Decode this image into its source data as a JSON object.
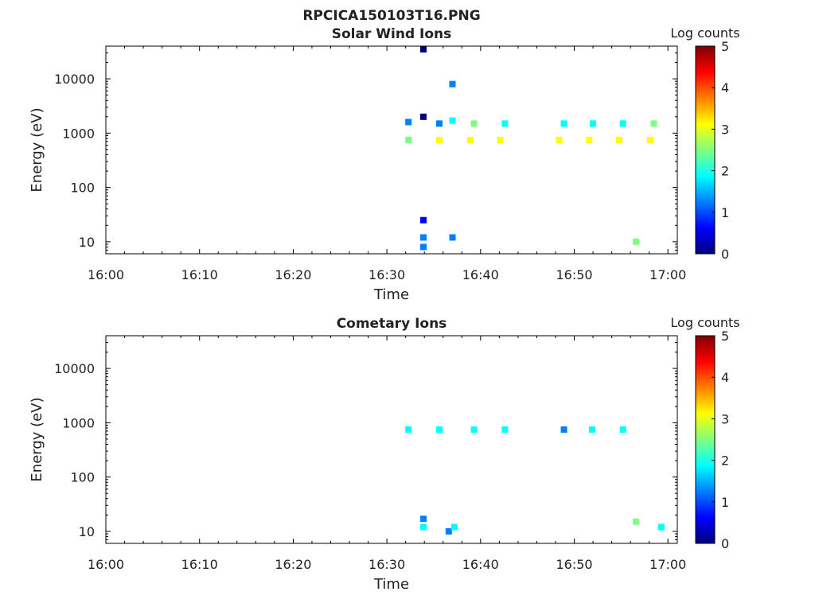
{
  "figure": {
    "file_title": "RPCICA150103T16.PNG"
  },
  "colormap": [
    "#00007f",
    "#0000ff",
    "#007fff",
    "#00ffff",
    "#7fff7f",
    "#ffff00",
    "#ff7f00",
    "#ff0000",
    "#7f0000"
  ],
  "chart_data": [
    {
      "type": "heatmap",
      "title": "Solar Wind Ions",
      "xlabel": "Time",
      "ylabel": "Energy (eV)",
      "yscale": "log",
      "xlim": [
        "16:00",
        "17:01"
      ],
      "ylim": [
        6,
        40000
      ],
      "x_ticks": [
        "16:00",
        "16:10",
        "16:20",
        "16:30",
        "16:40",
        "16:50",
        "17:00"
      ],
      "y_ticks": [
        "10",
        "100",
        "1000",
        "10000"
      ],
      "colorbar": {
        "label": "Log counts",
        "range": [
          0,
          5
        ],
        "ticks": [
          "0",
          "1",
          "2",
          "3",
          "4",
          "5"
        ]
      },
      "grid": false,
      "note_cells": "time in minutes after 16:00, energy in eV, value in log counts",
      "cells": [
        {
          "t": 32.3,
          "e": 1600,
          "v": 1.5
        },
        {
          "t": 32.3,
          "e": 750,
          "v": 2.5
        },
        {
          "t": 33.9,
          "e": 35000,
          "v": 0.2
        },
        {
          "t": 33.9,
          "e": 2000,
          "v": 0.3
        },
        {
          "t": 33.9,
          "e": 25,
          "v": 0.5
        },
        {
          "t": 33.9,
          "e": 12,
          "v": 1.2
        },
        {
          "t": 33.9,
          "e": 8,
          "v": 1.0
        },
        {
          "t": 35.6,
          "e": 750,
          "v": 3.0
        },
        {
          "t": 35.6,
          "e": 1500,
          "v": 1.2
        },
        {
          "t": 37.0,
          "e": 1700,
          "v": 2.0
        },
        {
          "t": 37.0,
          "e": 8000,
          "v": 1.5
        },
        {
          "t": 37.0,
          "e": 12,
          "v": 1.2
        },
        {
          "t": 38.9,
          "e": 750,
          "v": 3.2
        },
        {
          "t": 39.3,
          "e": 1500,
          "v": 2.2
        },
        {
          "t": 42.1,
          "e": 750,
          "v": 3.0
        },
        {
          "t": 42.6,
          "e": 1500,
          "v": 2.0
        },
        {
          "t": 48.4,
          "e": 750,
          "v": 3.0
        },
        {
          "t": 48.9,
          "e": 1500,
          "v": 2.0
        },
        {
          "t": 51.6,
          "e": 750,
          "v": 3.0
        },
        {
          "t": 52.0,
          "e": 1500,
          "v": 2.0
        },
        {
          "t": 54.8,
          "e": 750,
          "v": 3.0
        },
        {
          "t": 55.2,
          "e": 1500,
          "v": 2.0
        },
        {
          "t": 56.6,
          "e": 10,
          "v": 2.5
        },
        {
          "t": 58.1,
          "e": 750,
          "v": 3.0
        },
        {
          "t": 58.5,
          "e": 1500,
          "v": 2.2
        }
      ]
    },
    {
      "type": "heatmap",
      "title": "Cometary Ions",
      "xlabel": "Time",
      "ylabel": "Energy (eV)",
      "yscale": "log",
      "xlim": [
        "16:00",
        "17:01"
      ],
      "ylim": [
        6,
        40000
      ],
      "x_ticks": [
        "16:00",
        "16:10",
        "16:20",
        "16:30",
        "16:40",
        "16:50",
        "17:00"
      ],
      "y_ticks": [
        "10",
        "100",
        "1000",
        "10000"
      ],
      "colorbar": {
        "label": "Log counts",
        "range": [
          0,
          5
        ],
        "ticks": [
          "0",
          "1",
          "2",
          "3",
          "4",
          "5"
        ]
      },
      "grid": false,
      "cells": [
        {
          "t": 32.3,
          "e": 750,
          "v": 1.8
        },
        {
          "t": 33.9,
          "e": 12,
          "v": 2.0
        },
        {
          "t": 33.9,
          "e": 17,
          "v": 1.2
        },
        {
          "t": 35.6,
          "e": 750,
          "v": 2.0
        },
        {
          "t": 36.6,
          "e": 10,
          "v": 1.0
        },
        {
          "t": 37.2,
          "e": 12,
          "v": 2.0
        },
        {
          "t": 39.3,
          "e": 750,
          "v": 2.0
        },
        {
          "t": 42.6,
          "e": 750,
          "v": 1.8
        },
        {
          "t": 48.9,
          "e": 750,
          "v": 1.5
        },
        {
          "t": 51.9,
          "e": 750,
          "v": 1.8
        },
        {
          "t": 55.2,
          "e": 750,
          "v": 1.8
        },
        {
          "t": 56.6,
          "e": 15,
          "v": 2.5
        },
        {
          "t": 59.3,
          "e": 12,
          "v": 2.0
        }
      ]
    }
  ]
}
